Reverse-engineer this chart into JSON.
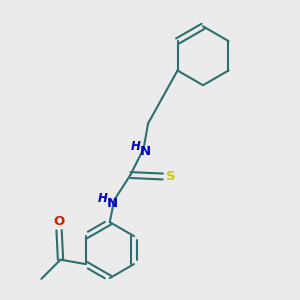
{
  "background_color": "#ebebeb",
  "bond_color": "#2d6e6e",
  "n_color": "#0000cc",
  "o_color": "#cc2200",
  "s_color": "#cccc00",
  "bond_width": 1.5,
  "fig_width": 3.0,
  "fig_height": 3.0,
  "dpi": 100,
  "xlim": [
    0,
    10
  ],
  "ylim": [
    0,
    10
  ]
}
